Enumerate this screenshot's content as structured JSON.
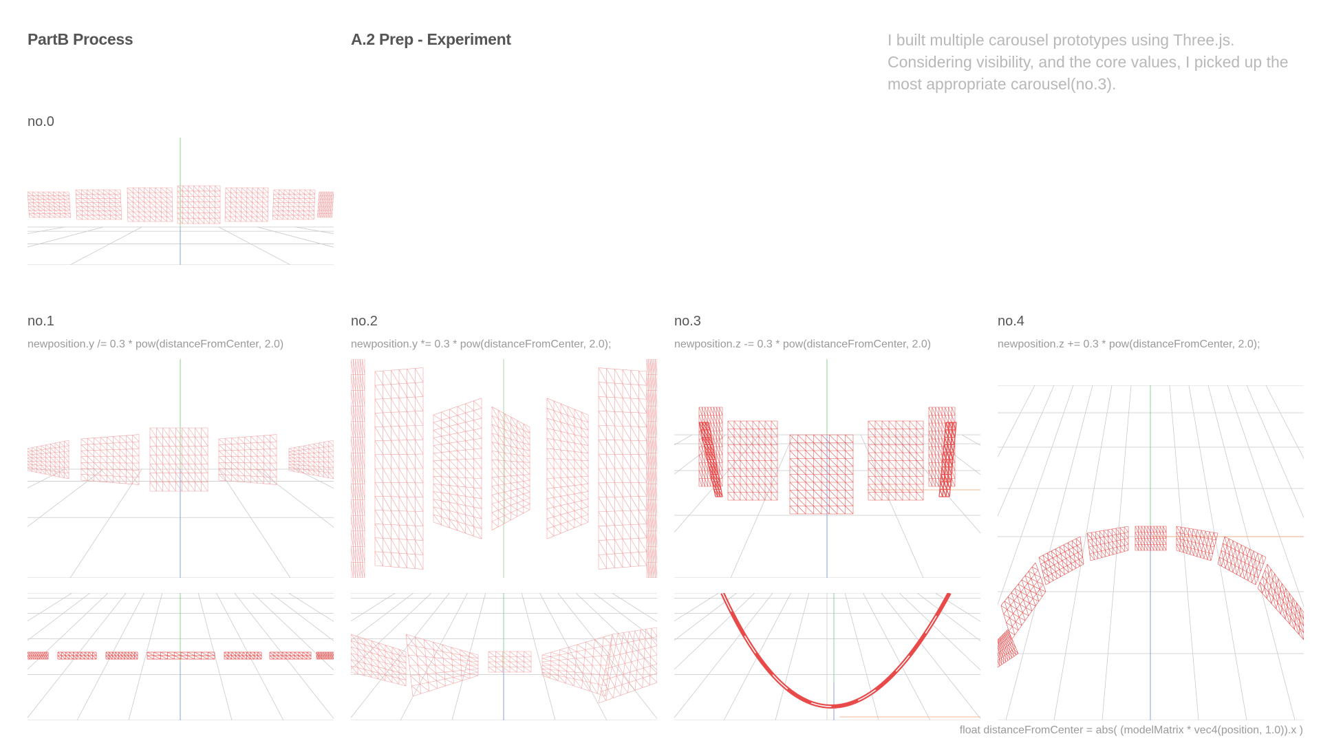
{
  "header": {
    "title_left": "PartB Process",
    "title_mid": "A.2 Prep - Experiment",
    "intro": "I built multiple carousel prototypes using Three.js. Considering visibility, and the core values, I picked up the most appropriate carousel(no.3)."
  },
  "prototypes": [
    {
      "label": "no.0",
      "formula": ""
    },
    {
      "label": "no.1",
      "formula": "newposition.y /= 0.3 * pow(distanceFromCenter, 2.0)"
    },
    {
      "label": "no.2",
      "formula": "newposition.y *= 0.3 * pow(distanceFromCenter, 2.0);"
    },
    {
      "label": "no.3",
      "formula": "newposition.z -= 0.3 * pow(distanceFromCenter, 2.0)"
    },
    {
      "label": "no.4",
      "formula": "newposition.z += 0.3 * pow(distanceFromCenter, 2.0);"
    }
  ],
  "footer": {
    "note": "float distanceFromCenter = abs( (modelMatrix * vec4(position, 1.0)).x )"
  },
  "colors": {
    "mesh": "#e84a4a",
    "mesh_light": "#f3a0a0",
    "grid": "#c9c9c9",
    "axis_y": "#8fd18f",
    "axis_z": "#7fa7e0",
    "axis_x": "#f0a070"
  }
}
